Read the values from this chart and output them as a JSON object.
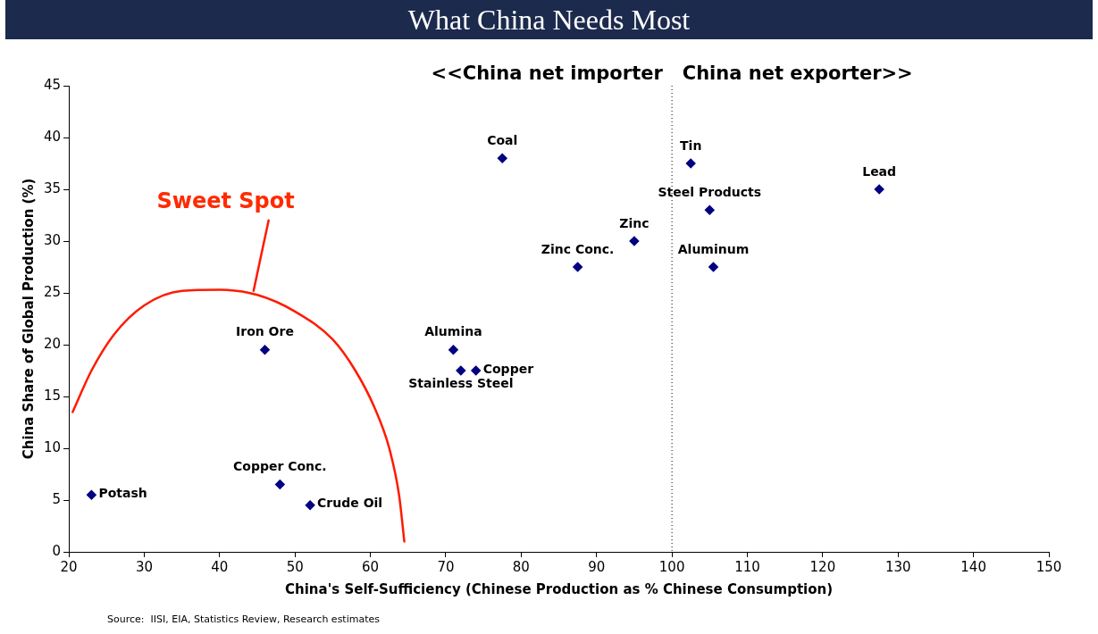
{
  "chart_data": {
    "type": "scatter",
    "title": "What China Needs Most",
    "xlabel": "China's Self-Sufficiency (Chinese Production as % Chinese Consumption)",
    "ylabel": "China Share of Global Production (%)",
    "series": [
      {
        "type": "scatter",
        "marker": "diamond",
        "color": "#000080",
        "x": [
          23,
          46,
          48,
          52,
          71,
          72,
          74,
          77.5,
          87.5,
          95,
          102.5,
          105,
          105.5,
          127.5
        ],
        "values": [
          5.5,
          19.5,
          6.5,
          4.5,
          19.5,
          17.5,
          17.5,
          38,
          27.5,
          30,
          37.5,
          33,
          27.5,
          35
        ],
        "value_labels": [
          "Potash",
          "Iron Ore",
          "Copper Conc.",
          "Crude Oil",
          "Alumina",
          "Stainless Steel",
          "Copper",
          "Coal",
          "Zinc Conc.",
          "Zinc",
          "Tin",
          "Steel Products",
          "Aluminum",
          "Lead"
        ]
      },
      {
        "type": "line",
        "marker": "none",
        "color": "#ff1a00",
        "x": [
          20.5,
          23,
          26,
          30,
          35,
          40,
          45,
          50,
          55,
          58,
          60.5,
          62.5,
          63.8,
          64.5
        ],
        "values": [
          13.5,
          17.5,
          21,
          23.8,
          25.2,
          25.3,
          24.8,
          23.2,
          20.5,
          17.5,
          14,
          10,
          5.5,
          1
        ]
      },
      {
        "type": "line",
        "marker": "none",
        "color": "#ff1a00",
        "x": [
          44.5,
          46.5
        ],
        "values": [
          25.2,
          32
        ]
      }
    ],
    "grid": false,
    "legend": false,
    "xlim": [
      20,
      150
    ],
    "xticks": [
      20,
      30,
      40,
      50,
      60,
      70,
      80,
      90,
      100,
      110,
      120,
      130,
      140,
      150
    ],
    "ylim": [
      0,
      45
    ],
    "yticks": [
      0,
      5,
      10,
      15,
      20,
      25,
      30,
      35,
      40,
      45
    ],
    "ref_lines": [
      {
        "axis": "x",
        "value": 100,
        "label": "<<China net importer   China net exporter>>",
        "color": "#000000",
        "line_style": "dotted"
      }
    ],
    "annotations": [
      "Sweet Spot",
      "Source:  IISI, EIA, Statistics Review, Research estimates"
    ]
  }
}
